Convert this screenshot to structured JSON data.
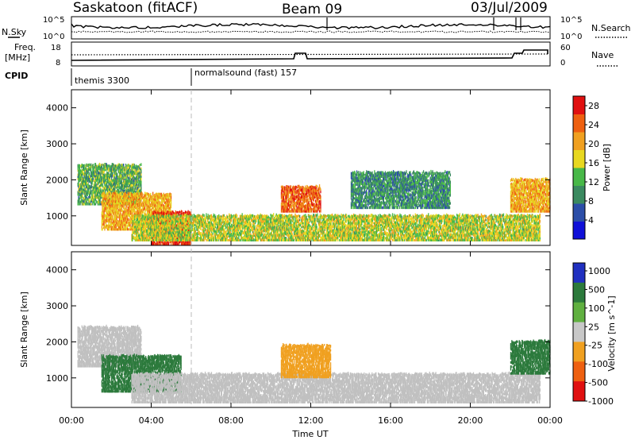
{
  "header": {
    "station": "Saskatoon (fitACF)",
    "beam": "Beam 09",
    "date": "03/Jul/2009"
  },
  "side_labels": {
    "nsky": "N.Sky",
    "nsearch": "N.Search",
    "freq_line1": "Freq.",
    "freq_line2": "[MHz]",
    "nave": "Nave",
    "cpid": "CPID",
    "nsky_ticks": [
      "10^5",
      "10^0"
    ],
    "nsearch_ticks": [
      "10^5",
      "10^0"
    ],
    "freq_ticks": [
      "18",
      "8"
    ],
    "nave_ticks": [
      "60",
      "0"
    ]
  },
  "cpid_segments": [
    {
      "label": "themis 3300",
      "start_hour": 0
    },
    {
      "label": "normalsound (fast) 157",
      "start_hour": 6
    }
  ],
  "colors": {
    "power_scale": [
      "#1010d8",
      "#2c4ea8",
      "#3b8a60",
      "#48b848",
      "#e8d820",
      "#f0a020",
      "#ee6010",
      "#e01010"
    ],
    "velocity_scale": [
      "#2030c0",
      "#2c7a3c",
      "#60b040",
      "#c8c8c8",
      "#f0a020",
      "#ee6010",
      "#e01010"
    ],
    "ground_scatter": "#c0c0c0"
  },
  "chart_data": [
    {
      "type": "heatmap",
      "title": "Power",
      "xlabel": "",
      "ylabel": "Slant Range [km]",
      "x_ticks": [
        "00:00",
        "04:00",
        "08:00",
        "12:00",
        "16:00",
        "20:00",
        "00:00"
      ],
      "xlim_hours": [
        0,
        24
      ],
      "ylim_km": [
        180,
        4500
      ],
      "y_ticks": [
        1000,
        2000,
        3000,
        4000
      ],
      "colorbar_label": "Power [dB]",
      "colorbar_ticks": [
        4,
        8,
        12,
        16,
        20,
        24,
        28
      ],
      "colorbar_range": [
        0,
        30
      ],
      "echo_regions": [
        {
          "t_start": 0.3,
          "t_end": 3.5,
          "r_low": 1300,
          "r_high": 2400,
          "value": 12
        },
        {
          "t_start": 1.5,
          "t_end": 5.0,
          "r_low": 600,
          "r_high": 1600,
          "value": 20
        },
        {
          "t_start": 4.0,
          "t_end": 6.0,
          "r_low": 200,
          "r_high": 1100,
          "value": 28
        },
        {
          "t_start": 3.0,
          "t_end": 23.5,
          "r_low": 300,
          "r_high": 1000,
          "value": 16
        },
        {
          "t_start": 10.5,
          "t_end": 12.5,
          "r_low": 1100,
          "r_high": 1800,
          "value": 24
        },
        {
          "t_start": 14.0,
          "t_end": 19.0,
          "r_low": 1200,
          "r_high": 2200,
          "value": 10
        },
        {
          "t_start": 22.0,
          "t_end": 24.0,
          "r_low": 1100,
          "r_high": 2000,
          "value": 20
        }
      ]
    },
    {
      "type": "heatmap",
      "title": "Velocity",
      "xlabel": "Time UT",
      "ylabel": "Slant Range [km]",
      "x_ticks": [
        "00:00",
        "04:00",
        "08:00",
        "12:00",
        "16:00",
        "20:00",
        "00:00"
      ],
      "xlim_hours": [
        0,
        24
      ],
      "ylim_km": [
        180,
        4500
      ],
      "y_ticks": [
        1000,
        2000,
        3000,
        4000
      ],
      "colorbar_label": "Velocity [m s^-1]",
      "colorbar_ticks": [
        "1000",
        "500",
        "100",
        "25",
        "-25",
        "-100",
        "-500",
        "-1000"
      ],
      "echo_regions": [
        {
          "t_start": 0.3,
          "t_end": 3.5,
          "r_low": 1300,
          "r_high": 2400,
          "value": "ground"
        },
        {
          "t_start": 1.5,
          "t_end": 5.5,
          "r_low": 600,
          "r_high": 1600,
          "value": 100
        },
        {
          "t_start": 3.0,
          "t_end": 23.5,
          "r_low": 300,
          "r_high": 1100,
          "value": "ground"
        },
        {
          "t_start": 10.5,
          "t_end": 13.0,
          "r_low": 1000,
          "r_high": 1900,
          "value": -100
        },
        {
          "t_start": 22.0,
          "t_end": 24.0,
          "r_low": 1100,
          "r_high": 2000,
          "value": 100
        }
      ]
    }
  ]
}
